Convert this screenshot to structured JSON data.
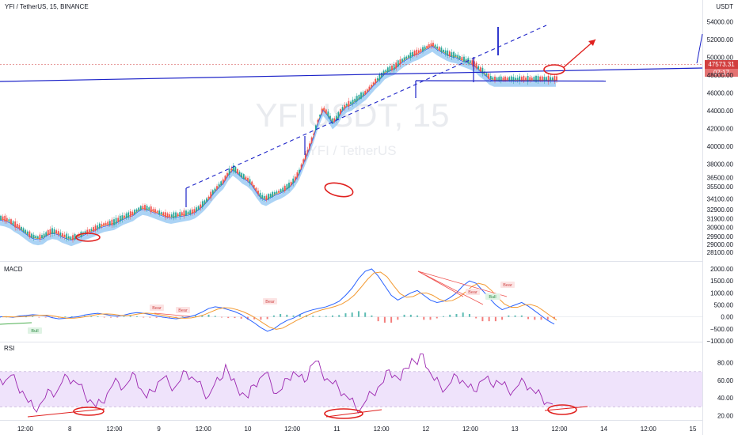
{
  "header": {
    "symbol_title": "YFI / TetherUS, 15, BINANCE",
    "currency_label": "USDT"
  },
  "watermark": {
    "symbol": "YFIUSDT, 15",
    "name": "YFI / TetherUS"
  },
  "price_tag": {
    "price": "47573.31",
    "countdown": "07:17"
  },
  "colors": {
    "price_line": "#d23f3f",
    "band": "#9ccbf3",
    "ma_orange": "#f39a32",
    "ma_blue": "#2962ff",
    "trend": "#1c23c8",
    "annotation": "#e0201e",
    "rsi_fill": "#efe3fb",
    "rsi_line": "#9c27b0",
    "bull": "#26a69a",
    "bear": "#ef5350"
  },
  "chart_data": [
    {
      "pane": "price",
      "type": "line",
      "ylim": [
        27500,
        55000
      ],
      "y_ticks": [
        "54000.00",
        "52000.00",
        "50000.00",
        "48000.00",
        "46000.00",
        "44000.00",
        "42000.00",
        "40000.00",
        "38000.00",
        "36500.00",
        "35500.00",
        "34100.00",
        "32900.00",
        "31900.00",
        "30900.00",
        "29900.00",
        "29000.00",
        "28100.00"
      ],
      "x_ticks": [
        "12:00",
        "8",
        "12:00",
        "9",
        "12:00",
        "10",
        "12:00",
        "11",
        "12:00",
        "12",
        "12:00",
        "13",
        "12:00",
        "14",
        "12:00",
        "15"
      ],
      "series": [
        {
          "x": [
            0,
            6,
            12,
            18,
            24,
            30,
            36,
            42,
            48,
            54,
            60,
            66,
            72,
            78,
            84,
            90,
            96,
            102,
            108,
            114,
            120,
            126,
            132,
            138,
            144,
            150,
            156,
            162,
            168,
            174,
            180,
            186,
            192,
            198,
            204,
            210,
            216,
            222,
            228,
            234,
            240,
            246,
            252,
            258,
            264,
            270,
            276,
            282,
            288,
            294,
            300,
            306,
            312,
            318,
            324,
            330,
            336,
            342,
            348,
            354,
            360,
            366,
            372,
            378,
            384,
            390,
            396,
            402,
            408,
            414,
            420,
            426,
            432,
            438,
            444,
            450,
            456,
            462,
            468,
            474,
            480,
            486,
            492,
            498,
            504,
            510,
            516,
            522,
            528,
            534,
            540,
            546,
            552,
            558,
            564,
            570,
            576,
            582,
            588,
            594,
            600,
            606,
            612,
            618,
            624,
            630,
            636,
            642,
            648,
            654,
            660,
            666,
            672,
            678,
            684,
            690,
            696,
            702
          ],
          "values": [
            32000,
            31900,
            31700,
            31300,
            31000,
            30600,
            30200,
            29900,
            29800,
            29900,
            30300,
            30500,
            30400,
            30100,
            29900,
            29700,
            29900,
            30100,
            30400,
            30600,
            30800,
            31100,
            31300,
            31400,
            31500,
            31800,
            32100,
            32300,
            32500,
            32900,
            33200,
            33100,
            32900,
            32700,
            32500,
            32300,
            32200,
            32300,
            32400,
            32500,
            32600,
            32800,
            33200,
            33700,
            34300,
            35000,
            35600,
            36100,
            37000,
            37600,
            37200,
            36700,
            36400,
            35900,
            35100,
            34400,
            34200,
            34500,
            34800,
            35000,
            35300,
            35700,
            36300,
            37200,
            38500,
            39800,
            41300,
            43000,
            44300,
            43700,
            42800,
            43300,
            44200,
            44700,
            44900,
            45300,
            45700,
            46100,
            46700,
            47300,
            47800,
            48400,
            48700,
            48900,
            49400,
            49800,
            50100,
            50400,
            50600,
            50900,
            51200,
            51500,
            51100,
            50800,
            50500,
            50300,
            50200,
            49900,
            49700,
            49500,
            49200,
            48700,
            48300,
            47800,
            47573,
            47573,
            47573,
            47573,
            47573,
            47573,
            47573,
            47573,
            47573,
            47573,
            47573,
            47573,
            47573,
            47573
          ]
        }
      ]
    },
    {
      "pane": "MACD",
      "type": "line",
      "ylim": [
        -1000,
        2000
      ],
      "y_ticks": [
        "2000.00",
        "1500.00",
        "1000.00",
        "500.00",
        "0.00",
        "−500.00",
        "−1000.00"
      ],
      "values": [
        0,
        10,
        -20,
        40,
        60,
        90,
        70,
        50,
        -30,
        -80,
        -60,
        -20,
        10,
        80,
        120,
        150,
        110,
        60,
        30,
        70,
        140,
        180,
        150,
        100,
        40,
        -10,
        -50,
        -80,
        -40,
        0,
        80,
        200,
        350,
        420,
        380,
        300,
        220,
        100,
        -80,
        -250,
        -450,
        -600,
        -500,
        -300,
        -150,
        -50,
        100,
        220,
        300,
        360,
        420,
        520,
        650,
        900,
        1200,
        1600,
        1900,
        2000,
        1700,
        1300,
        900,
        700,
        850,
        1000,
        1100,
        900,
        700,
        600,
        650,
        800,
        1000,
        1300,
        1500,
        1400,
        1100,
        800,
        500,
        300,
        400,
        500,
        600,
        450,
        250,
        50,
        -150,
        -300
      ]
    },
    {
      "pane": "RSI",
      "type": "line",
      "ylim": [
        15,
        95
      ],
      "y_ticks": [
        "80.00",
        "60.00",
        "40.00",
        "20.00"
      ],
      "band": [
        30,
        70
      ],
      "values": [
        62,
        60,
        66,
        55,
        48,
        35,
        28,
        32,
        40,
        48,
        46,
        58,
        64,
        60,
        55,
        44,
        38,
        30,
        35,
        45,
        55,
        58,
        52,
        60,
        66,
        50,
        40,
        48,
        58,
        63,
        56,
        52,
        60,
        70,
        64,
        58,
        48,
        42,
        55,
        60,
        78,
        60,
        52,
        46,
        40,
        55,
        62,
        68,
        58,
        45,
        50,
        62,
        70,
        64,
        58,
        76,
        82,
        70,
        62,
        56,
        52,
        45,
        38,
        30,
        28,
        38,
        45,
        52,
        58,
        72,
        66,
        60,
        74,
        85,
        78,
        90,
        72,
        60,
        55,
        50,
        58,
        65,
        60,
        52,
        48,
        58,
        62,
        56,
        60,
        55,
        50,
        48,
        55,
        58,
        52,
        45,
        42,
        35,
        33
      ]
    }
  ],
  "macd_labels": {
    "bear": [
      "Bear",
      "Bear",
      "Bear",
      "Bear",
      "Bear",
      "Bear"
    ],
    "bull": [
      "Bull",
      "Bull"
    ]
  },
  "pane_titles": {
    "macd": "MACD",
    "rsi": "RSI"
  }
}
